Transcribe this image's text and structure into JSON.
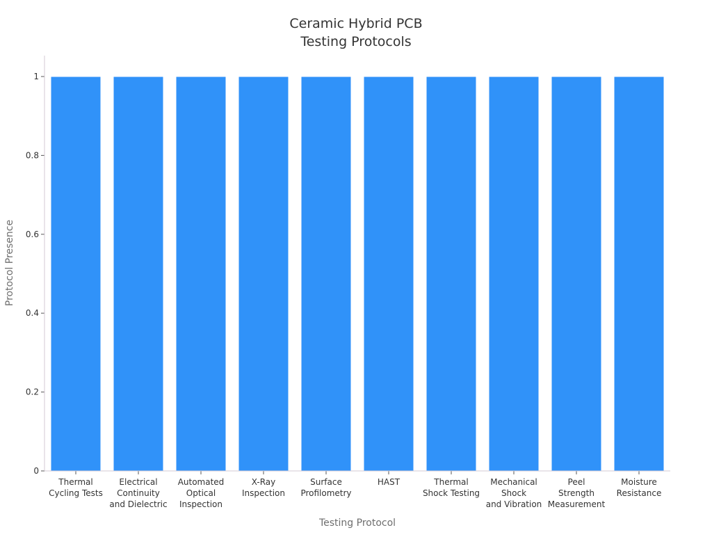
{
  "chart_data": {
    "type": "bar",
    "title_lines": [
      "Ceramic Hybrid PCB",
      "Testing Protocols"
    ],
    "xlabel": "Testing Protocol",
    "ylabel": "Protocol Presence",
    "categories": [
      [
        "Thermal",
        "Cycling Tests"
      ],
      [
        "Electrical",
        "Continuity",
        "and Dielectric"
      ],
      [
        "Automated",
        "Optical",
        "Inspection"
      ],
      [
        "X-Ray",
        "Inspection"
      ],
      [
        "Surface",
        "Profilometry"
      ],
      [
        "HAST"
      ],
      [
        "Thermal",
        "Shock Testing"
      ],
      [
        "Mechanical",
        "Shock",
        "and Vibration"
      ],
      [
        "Peel",
        "Strength",
        "Measurement"
      ],
      [
        "Moisture",
        "Resistance"
      ]
    ],
    "values": [
      1,
      1,
      1,
      1,
      1,
      1,
      1,
      1,
      1,
      1
    ],
    "ylim": [
      0,
      1
    ],
    "yticks": [
      "0",
      "0.2",
      "0.4",
      "0.6",
      "0.8",
      "1"
    ],
    "grid": false,
    "legend": "none",
    "colors": {
      "bar": "#3092f9",
      "axis": "#d3c9d3",
      "tick": "#555555"
    }
  }
}
